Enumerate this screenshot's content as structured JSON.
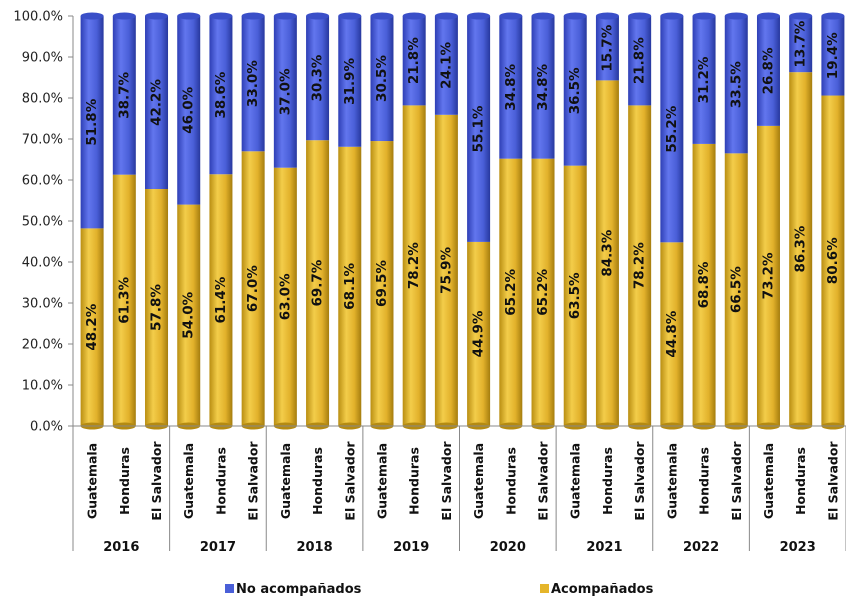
{
  "chart_data": {
    "type": "bar",
    "stacked": true,
    "percent": true,
    "years": [
      "2016",
      "2017",
      "2018",
      "2019",
      "2020",
      "2021",
      "2022",
      "2023"
    ],
    "countries": [
      "Guatemala",
      "Honduras",
      "El Salvador"
    ],
    "categories": [
      "Guatemala",
      "Honduras",
      "El Salvador",
      "Guatemala",
      "Honduras",
      "El Salvador",
      "Guatemala",
      "Honduras",
      "El Salvador",
      "Guatemala",
      "Honduras",
      "El Salvador",
      "Guatemala",
      "Honduras",
      "El Salvador",
      "Guatemala",
      "Honduras",
      "El Salvador",
      "Guatemala",
      "Honduras",
      "El Salvador",
      "Guatemala",
      "Honduras",
      "El Salvador"
    ],
    "series": [
      {
        "name": "Acompañados",
        "color": "#E5B52A",
        "values": [
          48.2,
          61.3,
          57.8,
          54.0,
          61.4,
          67.0,
          63.0,
          69.7,
          68.1,
          69.5,
          78.2,
          75.9,
          44.9,
          65.2,
          65.2,
          63.5,
          84.3,
          78.2,
          44.8,
          68.8,
          66.5,
          73.2,
          86.3,
          80.6
        ],
        "labels": [
          "48.2%",
          "61.3%",
          "57.8%",
          "54.0%",
          "61.4%",
          "67.0%",
          "63.0%",
          "69.7%",
          "68.1%",
          "69.5%",
          "78.2%",
          "75.9%",
          "44.9%",
          "65.2%",
          "65.2%",
          "63.5%",
          "84.3%",
          "78.2%",
          "44.8%",
          "68.8%",
          "66.5%",
          "73.2%",
          "86.3%",
          "80.6%"
        ]
      },
      {
        "name": "No acompañados",
        "color": "#4A5FD8",
        "values": [
          51.8,
          38.7,
          42.2,
          46.0,
          38.6,
          33.0,
          37.0,
          30.3,
          31.9,
          30.5,
          21.8,
          24.1,
          55.1,
          34.8,
          34.8,
          36.5,
          15.7,
          21.8,
          55.2,
          31.2,
          33.5,
          26.8,
          13.7,
          19.4
        ],
        "labels": [
          "51.8%",
          "38.7%",
          "42.2%",
          "46.0%",
          "38.6%",
          "33.0%",
          "37.0%",
          "30.3%",
          "31.9%",
          "30.5%",
          "21.8%",
          "24.1%",
          "55.1%",
          "34.8%",
          "34.8%",
          "36.5%",
          "15.7%",
          "21.8%",
          "55.2%",
          "31.2%",
          "33.5%",
          "26.8%",
          "13.7%",
          "19.4%"
        ]
      }
    ],
    "ylim": [
      0,
      100
    ],
    "yticks": [
      "0.0%",
      "10.0%",
      "20.0%",
      "30.0%",
      "40.0%",
      "50.0%",
      "60.0%",
      "70.0%",
      "80.0%",
      "90.0%",
      "100.0%"
    ],
    "legend": {
      "position": "bottom",
      "items": [
        "No acompañados",
        "Acompañados"
      ]
    },
    "grid": false
  }
}
